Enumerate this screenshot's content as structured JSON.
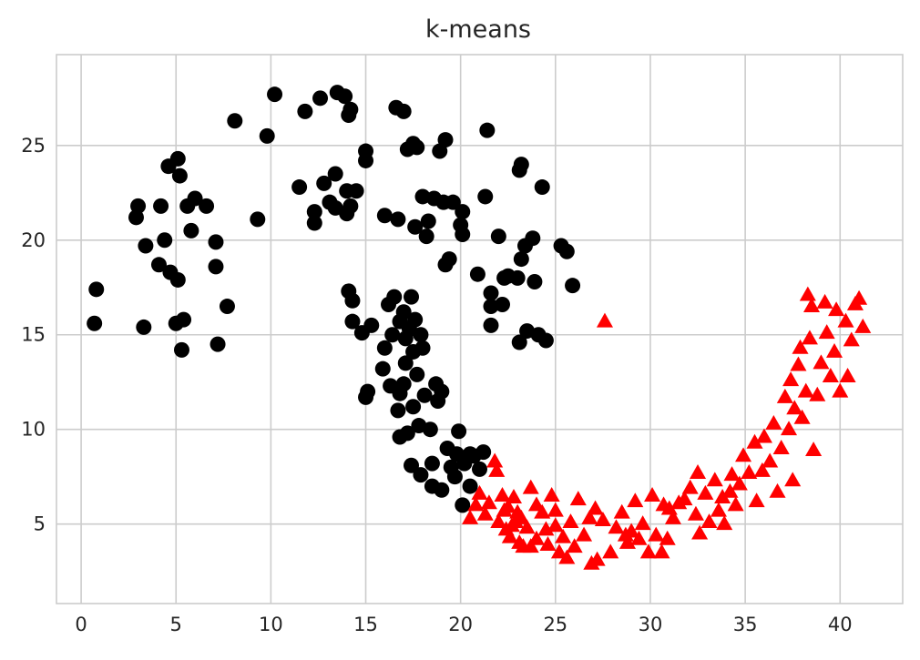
{
  "chart_data": {
    "type": "scatter",
    "title": "k-means",
    "xlabel": "",
    "ylabel": "",
    "xlim": [
      -1.3,
      43.3
    ],
    "ylim": [
      0.8,
      29.8
    ],
    "xticks": [
      0,
      5,
      10,
      15,
      20,
      25,
      30,
      35,
      40
    ],
    "yticks": [
      5,
      10,
      15,
      20,
      25
    ],
    "grid": true,
    "legend": "none",
    "series": [
      {
        "marker": "circle",
        "color": "#000000",
        "points": [
          [
            0.8,
            17.4
          ],
          [
            0.7,
            15.6
          ],
          [
            3.0,
            21.8
          ],
          [
            2.9,
            21.2
          ],
          [
            3.3,
            15.4
          ],
          [
            3.4,
            19.7
          ],
          [
            4.2,
            21.8
          ],
          [
            4.1,
            18.7
          ],
          [
            4.4,
            20.0
          ],
          [
            4.6,
            23.9
          ],
          [
            4.7,
            18.3
          ],
          [
            5.1,
            24.3
          ],
          [
            5.2,
            23.4
          ],
          [
            5.1,
            17.9
          ],
          [
            5.0,
            15.6
          ],
          [
            5.4,
            15.8
          ],
          [
            5.3,
            14.2
          ],
          [
            5.6,
            21.8
          ],
          [
            5.8,
            20.5
          ],
          [
            6.0,
            22.2
          ],
          [
            6.6,
            21.8
          ],
          [
            7.1,
            19.9
          ],
          [
            7.1,
            18.6
          ],
          [
            7.2,
            14.5
          ],
          [
            7.7,
            16.5
          ],
          [
            8.1,
            26.3
          ],
          [
            9.3,
            21.1
          ],
          [
            9.8,
            25.5
          ],
          [
            10.2,
            27.7
          ],
          [
            11.5,
            22.8
          ],
          [
            11.8,
            26.8
          ],
          [
            12.3,
            21.5
          ],
          [
            12.3,
            20.9
          ],
          [
            12.6,
            27.5
          ],
          [
            12.8,
            23.0
          ],
          [
            13.1,
            22.0
          ],
          [
            13.4,
            23.5
          ],
          [
            13.5,
            27.8
          ],
          [
            13.9,
            27.6
          ],
          [
            13.4,
            21.7
          ],
          [
            14.0,
            22.6
          ],
          [
            14.0,
            21.4
          ],
          [
            14.1,
            26.6
          ],
          [
            14.2,
            26.9
          ],
          [
            14.1,
            17.3
          ],
          [
            14.2,
            21.8
          ],
          [
            14.5,
            22.6
          ],
          [
            14.3,
            16.8
          ],
          [
            14.3,
            15.7
          ],
          [
            15.0,
            24.2
          ],
          [
            15.0,
            24.7
          ],
          [
            14.8,
            15.1
          ],
          [
            15.3,
            15.5
          ],
          [
            15.1,
            12.0
          ],
          [
            15.0,
            11.7
          ],
          [
            16.0,
            21.3
          ],
          [
            15.9,
            13.2
          ],
          [
            16.2,
            16.6
          ],
          [
            16.5,
            17.0
          ],
          [
            16.3,
            12.3
          ],
          [
            16.0,
            14.3
          ],
          [
            16.4,
            15.0
          ],
          [
            16.7,
            21.1
          ],
          [
            16.6,
            27.0
          ],
          [
            16.8,
            15.7
          ],
          [
            16.8,
            11.9
          ],
          [
            16.7,
            11.0
          ],
          [
            16.8,
            9.6
          ],
          [
            17.0,
            16.2
          ],
          [
            17.0,
            26.8
          ],
          [
            17.1,
            14.8
          ],
          [
            17.1,
            13.5
          ],
          [
            17.0,
            12.4
          ],
          [
            17.2,
            24.8
          ],
          [
            17.3,
            15.3
          ],
          [
            17.4,
            17.0
          ],
          [
            17.2,
            9.8
          ],
          [
            17.4,
            8.1
          ],
          [
            17.5,
            25.1
          ],
          [
            17.5,
            14.1
          ],
          [
            17.5,
            11.2
          ],
          [
            17.6,
            20.7
          ],
          [
            17.7,
            24.9
          ],
          [
            17.6,
            15.8
          ],
          [
            17.7,
            12.9
          ],
          [
            17.8,
            10.2
          ],
          [
            17.9,
            7.6
          ],
          [
            17.9,
            15.0
          ],
          [
            18.0,
            14.3
          ],
          [
            18.0,
            22.3
          ],
          [
            18.1,
            11.8
          ],
          [
            18.2,
            20.2
          ],
          [
            18.3,
            21.0
          ],
          [
            18.4,
            10.0
          ],
          [
            18.5,
            8.2
          ],
          [
            18.5,
            7.0
          ],
          [
            18.6,
            22.2
          ],
          [
            18.7,
            12.4
          ],
          [
            18.8,
            11.5
          ],
          [
            18.9,
            24.7
          ],
          [
            19.0,
            12.0
          ],
          [
            19.0,
            6.8
          ],
          [
            19.1,
            22.0
          ],
          [
            19.2,
            25.3
          ],
          [
            19.2,
            18.7
          ],
          [
            19.3,
            9.0
          ],
          [
            19.4,
            19.0
          ],
          [
            19.5,
            8.0
          ],
          [
            19.6,
            22.0
          ],
          [
            19.7,
            7.5
          ],
          [
            19.8,
            8.7
          ],
          [
            19.9,
            9.9
          ],
          [
            20.1,
            20.3
          ],
          [
            20.1,
            21.5
          ],
          [
            20.0,
            20.8
          ],
          [
            20.2,
            8.2
          ],
          [
            20.5,
            8.7
          ],
          [
            20.7,
            8.6
          ],
          [
            20.1,
            6.0
          ],
          [
            20.5,
            7.0
          ],
          [
            20.9,
            18.2
          ],
          [
            21.2,
            8.8
          ],
          [
            21.0,
            7.9
          ],
          [
            21.4,
            25.8
          ],
          [
            21.3,
            22.3
          ],
          [
            21.6,
            17.2
          ],
          [
            21.6,
            16.5
          ],
          [
            21.6,
            15.5
          ],
          [
            22.0,
            20.2
          ],
          [
            22.2,
            16.6
          ],
          [
            22.3,
            18.0
          ],
          [
            23.0,
            18.0
          ],
          [
            23.1,
            23.7
          ],
          [
            23.2,
            24.0
          ],
          [
            23.2,
            19.0
          ],
          [
            23.1,
            14.6
          ],
          [
            23.4,
            19.7
          ],
          [
            23.5,
            15.2
          ],
          [
            23.8,
            20.1
          ],
          [
            23.9,
            17.8
          ],
          [
            24.1,
            15.0
          ],
          [
            24.3,
            22.8
          ],
          [
            24.5,
            14.7
          ],
          [
            25.3,
            19.7
          ],
          [
            25.6,
            19.4
          ],
          [
            25.9,
            17.6
          ],
          [
            22.5,
            18.1
          ]
        ]
      },
      {
        "marker": "triangle",
        "color": "#ff0000",
        "points": [
          [
            27.6,
            15.7
          ],
          [
            20.5,
            5.3
          ],
          [
            20.8,
            6.0
          ],
          [
            21.0,
            6.6
          ],
          [
            21.3,
            5.5
          ],
          [
            21.5,
            6.1
          ],
          [
            21.8,
            8.3
          ],
          [
            21.9,
            7.8
          ],
          [
            22.0,
            5.1
          ],
          [
            22.2,
            6.5
          ],
          [
            22.3,
            5.7
          ],
          [
            22.4,
            4.7
          ],
          [
            22.5,
            5.9
          ],
          [
            22.6,
            4.3
          ],
          [
            22.8,
            6.4
          ],
          [
            22.9,
            5.1
          ],
          [
            23.0,
            5.6
          ],
          [
            23.1,
            4.0
          ],
          [
            23.2,
            5.3
          ],
          [
            23.3,
            3.8
          ],
          [
            23.5,
            4.8
          ],
          [
            23.7,
            6.9
          ],
          [
            23.7,
            3.8
          ],
          [
            24.0,
            6.0
          ],
          [
            24.0,
            4.2
          ],
          [
            24.3,
            5.6
          ],
          [
            24.5,
            4.7
          ],
          [
            24.6,
            3.9
          ],
          [
            24.8,
            6.5
          ],
          [
            25.0,
            5.7
          ],
          [
            25.2,
            3.5
          ],
          [
            25.4,
            4.3
          ],
          [
            25.6,
            3.2
          ],
          [
            25.8,
            5.1
          ],
          [
            26.0,
            3.8
          ],
          [
            26.2,
            6.3
          ],
          [
            26.5,
            4.4
          ],
          [
            26.8,
            5.3
          ],
          [
            26.9,
            2.9
          ],
          [
            27.1,
            5.8
          ],
          [
            27.2,
            3.1
          ],
          [
            27.5,
            5.2
          ],
          [
            27.9,
            3.5
          ],
          [
            28.5,
            5.6
          ],
          [
            28.7,
            4.4
          ],
          [
            28.8,
            4.0
          ],
          [
            29.0,
            4.6
          ],
          [
            29.2,
            6.2
          ],
          [
            29.4,
            4.2
          ],
          [
            29.6,
            5.0
          ],
          [
            29.9,
            3.5
          ],
          [
            30.1,
            6.5
          ],
          [
            30.3,
            4.4
          ],
          [
            30.6,
            3.5
          ],
          [
            30.7,
            6.0
          ],
          [
            30.9,
            4.2
          ],
          [
            31.2,
            5.3
          ],
          [
            31.5,
            6.1
          ],
          [
            31.8,
            6.3
          ],
          [
            32.1,
            6.9
          ],
          [
            32.4,
            5.5
          ],
          [
            32.5,
            7.7
          ],
          [
            32.6,
            4.5
          ],
          [
            32.9,
            6.6
          ],
          [
            33.1,
            5.1
          ],
          [
            33.4,
            7.3
          ],
          [
            33.6,
            5.7
          ],
          [
            33.9,
            5.0
          ],
          [
            34.2,
            6.7
          ],
          [
            34.3,
            7.6
          ],
          [
            34.5,
            6.0
          ],
          [
            34.7,
            7.1
          ],
          [
            34.9,
            8.6
          ],
          [
            35.2,
            7.7
          ],
          [
            35.5,
            9.3
          ],
          [
            35.6,
            6.2
          ],
          [
            35.9,
            7.8
          ],
          [
            36.0,
            9.6
          ],
          [
            36.3,
            8.3
          ],
          [
            36.5,
            10.3
          ],
          [
            36.7,
            6.7
          ],
          [
            36.9,
            9.0
          ],
          [
            37.1,
            11.7
          ],
          [
            37.3,
            10.0
          ],
          [
            37.4,
            12.6
          ],
          [
            37.6,
            11.1
          ],
          [
            37.8,
            13.4
          ],
          [
            37.9,
            14.3
          ],
          [
            38.0,
            10.6
          ],
          [
            38.2,
            12.0
          ],
          [
            38.3,
            17.1
          ],
          [
            38.4,
            14.8
          ],
          [
            38.5,
            16.5
          ],
          [
            38.6,
            8.9
          ],
          [
            38.8,
            11.8
          ],
          [
            39.0,
            13.5
          ],
          [
            39.2,
            16.7
          ],
          [
            39.3,
            15.1
          ],
          [
            39.5,
            12.8
          ],
          [
            39.7,
            14.1
          ],
          [
            39.8,
            16.3
          ],
          [
            40.0,
            12.0
          ],
          [
            40.3,
            15.7
          ],
          [
            40.4,
            12.8
          ],
          [
            40.6,
            14.7
          ],
          [
            40.8,
            16.6
          ],
          [
            41.0,
            16.9
          ],
          [
            41.2,
            15.4
          ],
          [
            37.5,
            7.3
          ],
          [
            33.8,
            6.4
          ],
          [
            31.0,
            5.8
          ],
          [
            28.2,
            4.8
          ],
          [
            25.0,
            4.9
          ],
          [
            22.7,
            4.9
          ]
        ]
      }
    ]
  }
}
